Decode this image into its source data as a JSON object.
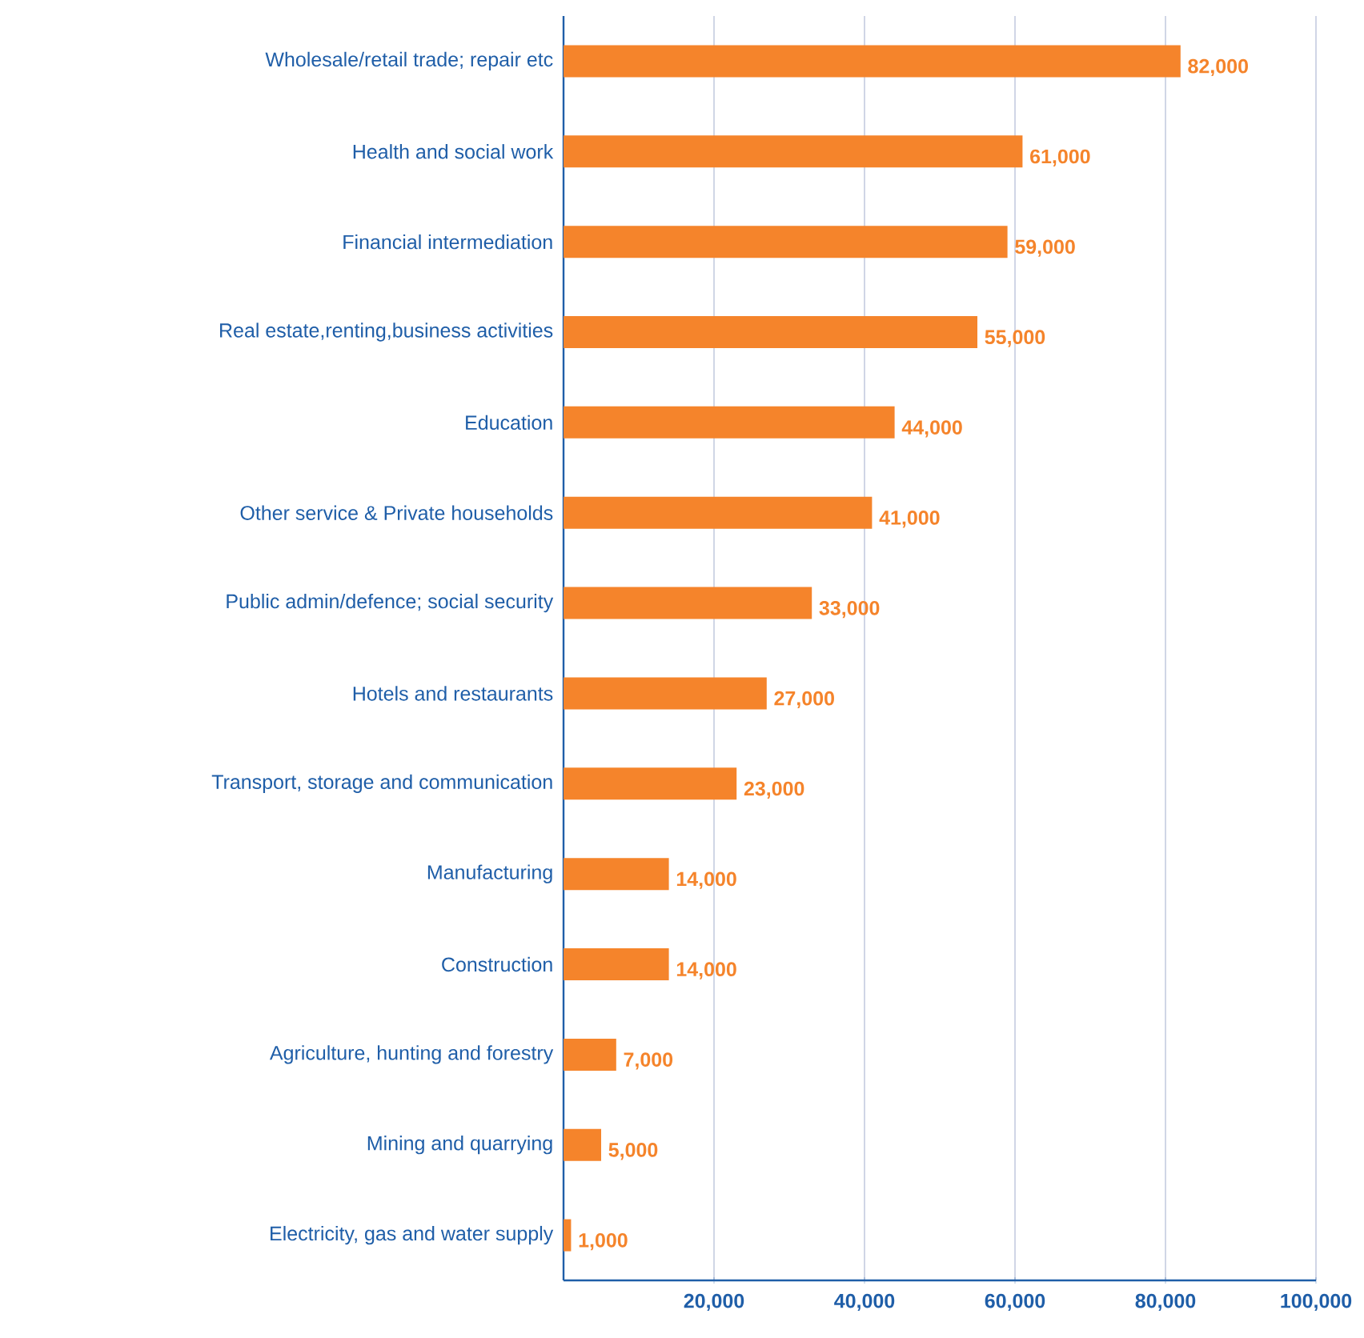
{
  "chart_data": {
    "type": "bar",
    "orientation": "horizontal",
    "categories": [
      "Wholesale/retail trade; repair etc",
      "Health and social work",
      "Financial intermediation",
      "Real estate,renting,business activities",
      "Education",
      "Other service & Private households",
      "Public admin/defence; social security",
      "Hotels and restaurants",
      "Transport, storage and communication",
      "Manufacturing",
      "Construction",
      "Agriculture, hunting and forestry",
      "Mining and quarrying",
      "Electricity, gas and water supply"
    ],
    "values": [
      82000,
      61000,
      59000,
      55000,
      44000,
      41000,
      33000,
      27000,
      23000,
      14000,
      14000,
      7000,
      5000,
      1000
    ],
    "value_labels": [
      "82,000",
      "61,000",
      "59,000",
      "55,000",
      "44,000",
      "41,000",
      "33,000",
      "27,000",
      "23,000",
      "14,000",
      "14,000",
      "7,000",
      "5,000",
      "1,000"
    ],
    "color": "#f5842b",
    "xlim": [
      0,
      100000
    ],
    "xticks": [
      {
        "value": 20000,
        "label": "20,000"
      },
      {
        "value": 40000,
        "label": "40,000"
      },
      {
        "value": 60000,
        "label": "60,000"
      },
      {
        "value": 80000,
        "label": "80,000"
      },
      {
        "value": 100000,
        "label": "100,000"
      }
    ],
    "grid": "x"
  }
}
